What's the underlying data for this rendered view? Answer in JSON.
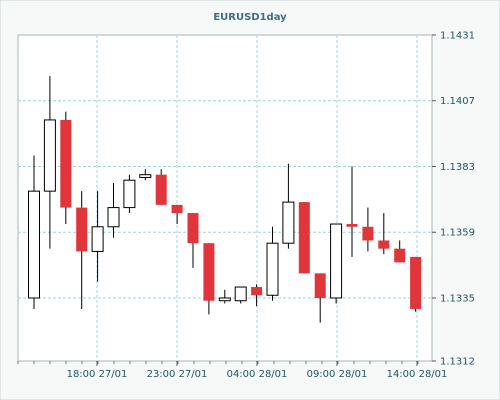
{
  "chart_data": {
    "type": "candlestick",
    "title": "EURUSD1day",
    "xlabel": "",
    "ylabel": "",
    "ylim": [
      1.1312,
      1.1431
    ],
    "y_ticks": [
      "1.1431",
      "1.1407",
      "1.1383",
      "1.1359",
      "1.1335",
      "1.1312"
    ],
    "x_ticks": [
      "18:00 27/01",
      "23:00 27/01",
      "04:00 28/01",
      "09:00 28/01",
      "14:00 28/01"
    ],
    "grid": true,
    "colors": {
      "up_fill": "#ffffff",
      "down_fill": "#e0363b",
      "outline": "#000000",
      "grid": "#9fd4d9",
      "title": "#3d6f7f",
      "label": "#1f5566"
    },
    "candles": [
      {
        "index": 0,
        "open": 1.1335,
        "close": 1.1374,
        "high": 1.1387,
        "low": 1.1331
      },
      {
        "index": 1,
        "open": 1.1374,
        "close": 1.14,
        "high": 1.1416,
        "low": 1.1353
      },
      {
        "index": 2,
        "open": 1.14,
        "close": 1.1368,
        "high": 1.1403,
        "low": 1.1362
      },
      {
        "index": 3,
        "open": 1.1368,
        "close": 1.1352,
        "high": 1.1374,
        "low": 1.1331
      },
      {
        "index": 4,
        "open": 1.1352,
        "close": 1.1361,
        "high": 1.1374,
        "low": 1.1341
      },
      {
        "index": 5,
        "open": 1.1361,
        "close": 1.1368,
        "high": 1.1377,
        "low": 1.1357
      },
      {
        "index": 6,
        "open": 1.1368,
        "close": 1.1378,
        "high": 1.138,
        "low": 1.1366
      },
      {
        "index": 7,
        "open": 1.1379,
        "close": 1.138,
        "high": 1.1382,
        "low": 1.1378
      },
      {
        "index": 8,
        "open": 1.138,
        "close": 1.1369,
        "high": 1.1382,
        "low": 1.1369
      },
      {
        "index": 9,
        "open": 1.1369,
        "close": 1.1366,
        "high": 1.1369,
        "low": 1.1362
      },
      {
        "index": 10,
        "open": 1.1366,
        "close": 1.1355,
        "high": 1.1366,
        "low": 1.1346
      },
      {
        "index": 11,
        "open": 1.1355,
        "close": 1.1334,
        "high": 1.1355,
        "low": 1.1329
      },
      {
        "index": 12,
        "open": 1.1334,
        "close": 1.1335,
        "high": 1.1338,
        "low": 1.1333
      },
      {
        "index": 13,
        "open": 1.1334,
        "close": 1.1339,
        "high": 1.1339,
        "low": 1.1333
      },
      {
        "index": 14,
        "open": 1.1339,
        "close": 1.1336,
        "high": 1.134,
        "low": 1.1332
      },
      {
        "index": 15,
        "open": 1.1336,
        "close": 1.1355,
        "high": 1.1361,
        "low": 1.1334
      },
      {
        "index": 16,
        "open": 1.1355,
        "close": 1.137,
        "high": 1.1384,
        "low": 1.1353
      },
      {
        "index": 17,
        "open": 1.137,
        "close": 1.1344,
        "high": 1.137,
        "low": 1.1344
      },
      {
        "index": 18,
        "open": 1.1344,
        "close": 1.1335,
        "high": 1.1344,
        "low": 1.1326
      },
      {
        "index": 19,
        "open": 1.1335,
        "close": 1.1362,
        "high": 1.1362,
        "low": 1.1333
      },
      {
        "index": 20,
        "open": 1.1362,
        "close": 1.1361,
        "high": 1.1383,
        "low": 1.135
      },
      {
        "index": 21,
        "open": 1.1361,
        "close": 1.1356,
        "high": 1.1368,
        "low": 1.1352
      },
      {
        "index": 22,
        "open": 1.1356,
        "close": 1.1353,
        "high": 1.1366,
        "low": 1.1351
      },
      {
        "index": 23,
        "open": 1.1353,
        "close": 1.1348,
        "high": 1.1356,
        "low": 1.1348
      },
      {
        "index": 24,
        "open": 1.135,
        "close": 1.1331,
        "high": 1.135,
        "low": 1.133
      }
    ]
  }
}
